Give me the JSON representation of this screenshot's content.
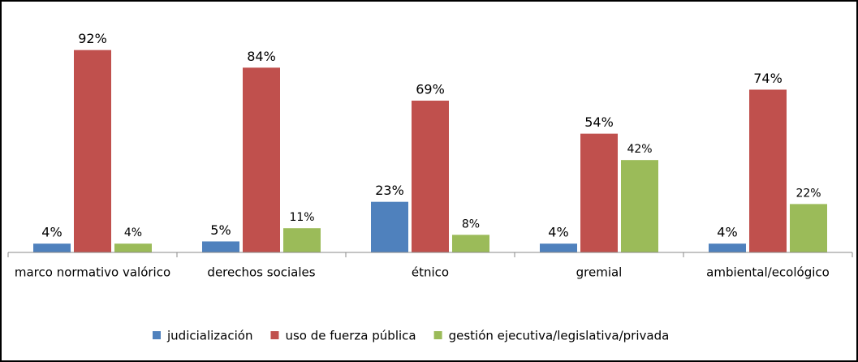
{
  "chart_data": {
    "type": "bar",
    "categories": [
      "marco normativo valórico",
      "derechos sociales",
      "étnico",
      "gremial",
      "ambiental/ecológico"
    ],
    "series": [
      {
        "name": "judicialización",
        "color": "#4f81bd",
        "values": [
          4,
          5,
          23,
          4,
          4
        ],
        "value_labels": [
          "4%",
          "5%",
          "23%",
          "4%",
          "4%"
        ]
      },
      {
        "name": "uso de fuerza pública",
        "color": "#c0504d",
        "values": [
          92,
          84,
          69,
          54,
          74
        ],
        "value_labels": [
          "92%",
          "84%",
          "69%",
          "54%",
          "74%"
        ]
      },
      {
        "name": "gestión ejecutiva/legislativa/privada",
        "color": "#9bbb59",
        "values": [
          4,
          11,
          8,
          42,
          22
        ],
        "value_labels": [
          "4%",
          "11%",
          "8%",
          "42%",
          "22%"
        ]
      }
    ],
    "ylim": [
      0,
      100
    ],
    "legend": "bottom"
  }
}
